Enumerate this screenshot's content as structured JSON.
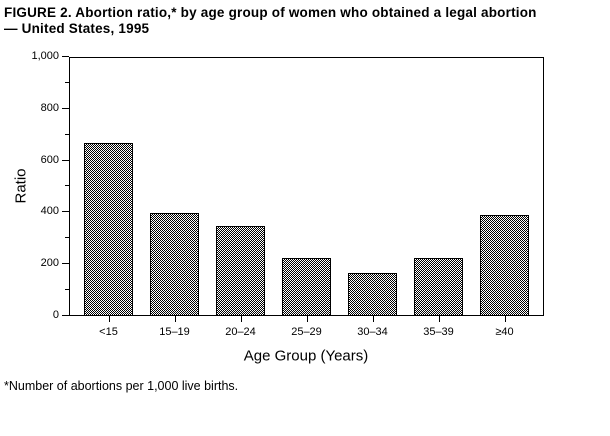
{
  "figure": {
    "title_line1": "FIGURE 2. Abortion ratio,* by age group of women who obtained a legal abortion",
    "title_line2": "— United States, 1995",
    "footnote": "*Number of abortions per 1,000 live births."
  },
  "chart_data": {
    "type": "bar",
    "title": "FIGURE 2. Abortion ratio,* by age group of women who obtained a legal abortion — United States, 1995",
    "categories": [
      "<15",
      "15–19",
      "20–24",
      "25–29",
      "30–34",
      "35–39",
      "≥40"
    ],
    "values": [
      670,
      400,
      350,
      225,
      165,
      225,
      390
    ],
    "xlabel": "Age Group (Years)",
    "ylabel": "Ratio",
    "ylim": [
      0,
      1000
    ],
    "ytick_step": 200,
    "yticks": [
      "0",
      "200",
      "400",
      "600",
      "800",
      "1,000"
    ],
    "minor_tick_step": 100,
    "grid": false,
    "legend": false,
    "bar_fill": "black-white checkerboard dither",
    "colors": {
      "background": "#ffffff",
      "text": "#000000",
      "bar_border": "#000000",
      "bar_pattern_fg": "#000000",
      "bar_pattern_bg": "#ffffff"
    }
  }
}
